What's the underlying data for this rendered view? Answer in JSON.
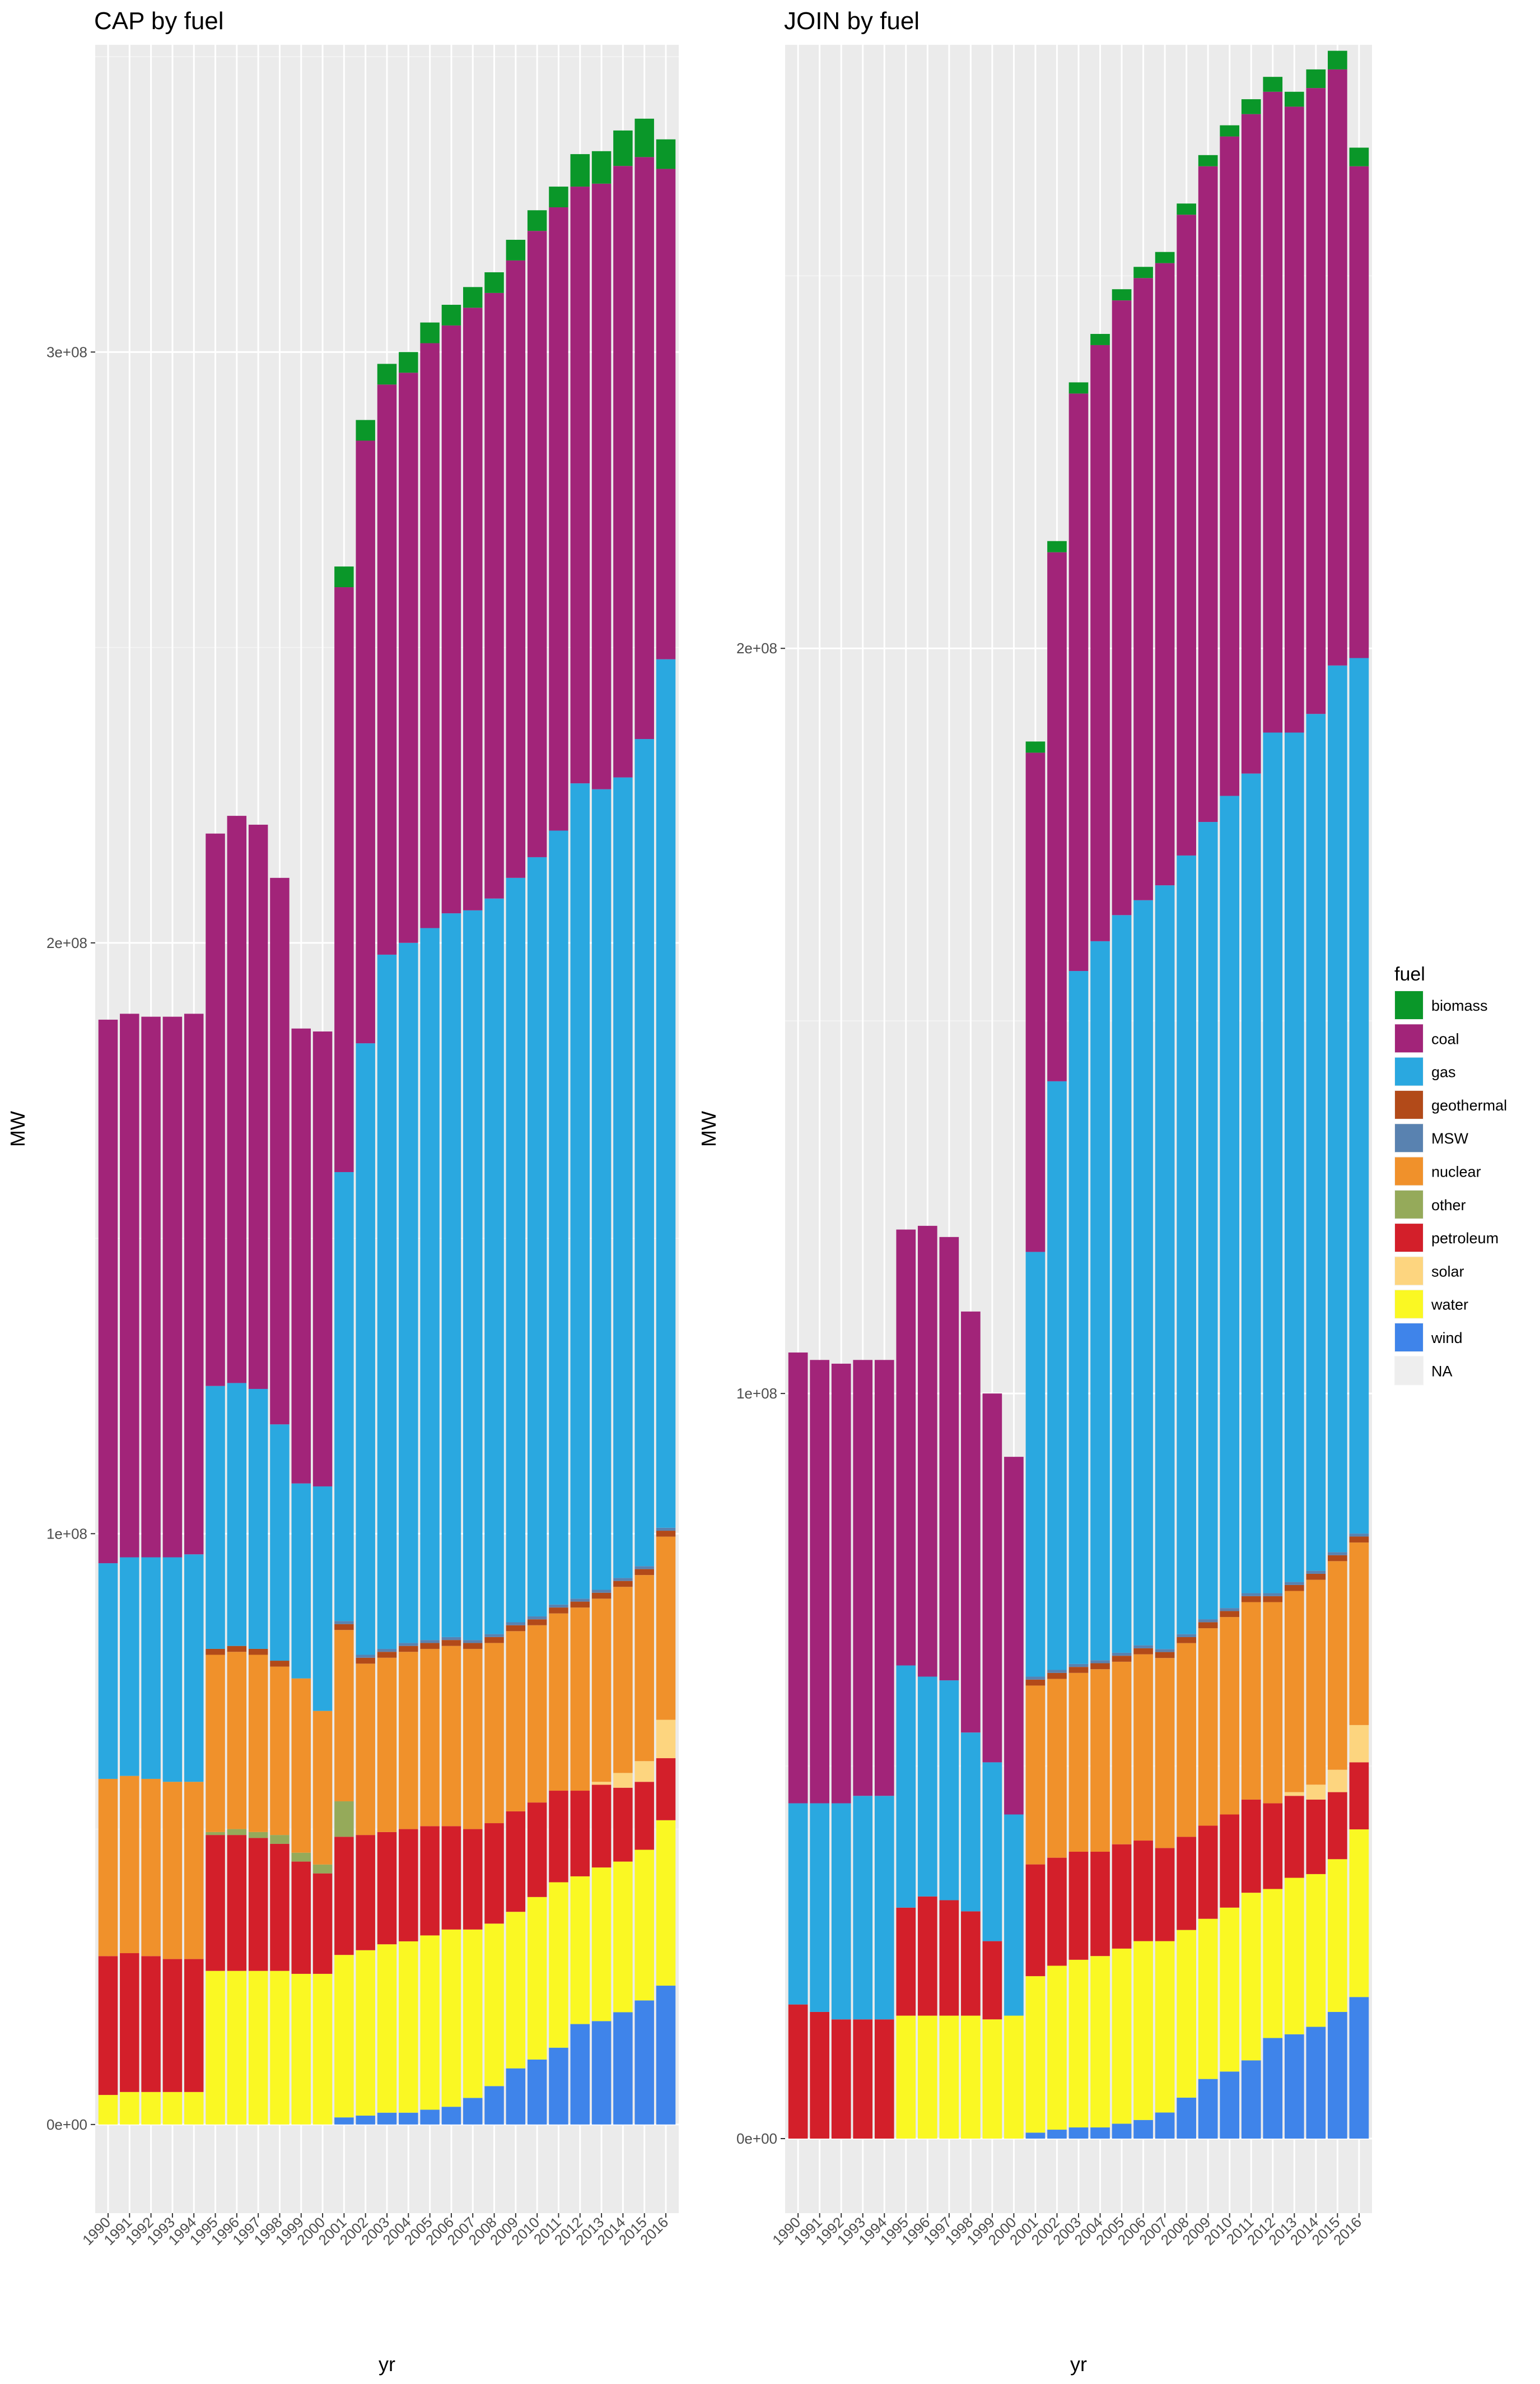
{
  "chart_data": [
    {
      "type": "bar",
      "stacked": true,
      "title": "CAP by fuel",
      "xlabel": "yr",
      "ylabel": "MW",
      "ylim": [
        -15000000,
        352000000
      ],
      "yticks": [
        0,
        100000000,
        200000000,
        300000000
      ],
      "ytick_labels": [
        "0e+00",
        "1e+08",
        "2e+08",
        "3e+08"
      ],
      "categories": [
        "1990",
        "1991",
        "1992",
        "1993",
        "1994",
        "1995",
        "1996",
        "1997",
        "1998",
        "1999",
        "2000",
        "2001",
        "2002",
        "2003",
        "2004",
        "2005",
        "2006",
        "2007",
        "2008",
        "2009",
        "2010",
        "2011",
        "2012",
        "2013",
        "2014",
        "2015",
        "2016"
      ],
      "series": [
        {
          "name": "wind",
          "color": "#3F84EA",
          "values": [
            0,
            0,
            0,
            0,
            0,
            0,
            0,
            0,
            0,
            0,
            0,
            1200000,
            1500000,
            2000000,
            2000000,
            2500000,
            3000000,
            4500000,
            6500000,
            9500000,
            11000000,
            13000000,
            17000000,
            17500000,
            19000000,
            21000000,
            23500000
          ]
        },
        {
          "name": "water",
          "color": "#FAF823",
          "values": [
            5000000,
            5500000,
            5500000,
            5500000,
            5500000,
            26000000,
            26000000,
            26000000,
            26000000,
            25500000,
            25500000,
            27500000,
            28000000,
            28500000,
            29000000,
            29500000,
            30000000,
            28500000,
            27500000,
            26500000,
            27500000,
            28000000,
            25000000,
            26000000,
            25500000,
            25500000,
            28000000
          ]
        },
        {
          "name": "petroleum",
          "color": "#D31F2A",
          "values": [
            23500000,
            23500000,
            23000000,
            22500000,
            22500000,
            23000000,
            23000000,
            22500000,
            21500000,
            19000000,
            17000000,
            20000000,
            19500000,
            19000000,
            19000000,
            18500000,
            17500000,
            17000000,
            17000000,
            17000000,
            16000000,
            15500000,
            14500000,
            14000000,
            12500000,
            11500000,
            10500000
          ]
        },
        {
          "name": "solar",
          "color": "#FDD57F",
          "values": [
            0,
            0,
            0,
            0,
            0,
            0,
            0,
            0,
            0,
            0,
            0,
            0,
            0,
            0,
            0,
            0,
            0,
            0,
            0,
            0,
            0,
            0,
            0,
            500000,
            2500000,
            3500000,
            6500000
          ]
        },
        {
          "name": "other",
          "color": "#95AA5A",
          "values": [
            0,
            0,
            0,
            0,
            0,
            500000,
            1000000,
            1000000,
            1500000,
            1500000,
            1500000,
            6000000,
            0,
            0,
            0,
            0,
            0,
            0,
            0,
            0,
            0,
            0,
            0,
            0,
            0,
            0,
            0
          ]
        },
        {
          "name": "nuclear",
          "color": "#F0912B",
          "values": [
            30000000,
            30000000,
            30000000,
            30000000,
            30000000,
            30000000,
            30000000,
            30000000,
            28500000,
            29500000,
            26000000,
            29000000,
            29000000,
            29500000,
            30000000,
            30000000,
            30500000,
            30500000,
            30500000,
            30500000,
            30000000,
            30000000,
            31000000,
            31000000,
            31500000,
            31500000,
            31000000
          ]
        },
        {
          "name": "geothermal",
          "color": "#B24A19",
          "values": [
            0,
            0,
            0,
            0,
            0,
            1000000,
            1000000,
            1000000,
            1000000,
            0,
            0,
            1000000,
            1000000,
            1000000,
            1000000,
            1000000,
            1000000,
            1000000,
            1000000,
            1000000,
            1000000,
            1000000,
            1000000,
            1000000,
            1000000,
            1000000,
            1000000
          ]
        },
        {
          "name": "MSW",
          "color": "#5982B0",
          "values": [
            0,
            0,
            0,
            0,
            0,
            0,
            0,
            0,
            0,
            0,
            0,
            500000,
            500000,
            500000,
            500000,
            500000,
            500000,
            500000,
            500000,
            500000,
            500000,
            500000,
            500000,
            500000,
            500000,
            500000,
            500000
          ]
        },
        {
          "name": "gas",
          "color": "#2AA8E0",
          "values": [
            36500000,
            37000000,
            37500000,
            38000000,
            38500000,
            44500000,
            44500000,
            44000000,
            40000000,
            33000000,
            38000000,
            76000000,
            103500000,
            117500000,
            118500000,
            120500000,
            122500000,
            123500000,
            124500000,
            126000000,
            128500000,
            131000000,
            138000000,
            135500000,
            135500000,
            140000000,
            147000000
          ]
        },
        {
          "name": "coal",
          "color": "#A22479",
          "values": [
            92000000,
            92000000,
            91500000,
            91500000,
            91500000,
            93500000,
            96000000,
            95500000,
            92500000,
            77000000,
            77000000,
            99000000,
            102000000,
            96500000,
            96500000,
            99000000,
            99500000,
            102000000,
            102500000,
            104500000,
            106000000,
            105500000,
            101000000,
            102500000,
            103500000,
            98500000,
            83000000
          ]
        },
        {
          "name": "biomass",
          "color": "#0A9729",
          "values": [
            0,
            0,
            0,
            0,
            0,
            0,
            0,
            0,
            0,
            0,
            0,
            3500000,
            3500000,
            3500000,
            3500000,
            3500000,
            3500000,
            3500000,
            3500000,
            3500000,
            3500000,
            3500000,
            5500000,
            5500000,
            6000000,
            6500000,
            5000000
          ]
        }
      ]
    },
    {
      "type": "bar",
      "stacked": true,
      "title": "JOIN by fuel",
      "xlabel": "yr",
      "ylabel": "MW",
      "ylim": [
        -10000000,
        281000000
      ],
      "yticks": [
        0,
        100000000,
        200000000
      ],
      "ytick_labels": [
        "0e+00",
        "1e+08",
        "2e+08"
      ],
      "categories": [
        "1990",
        "1991",
        "1992",
        "1993",
        "1994",
        "1995",
        "1996",
        "1997",
        "1998",
        "1999",
        "2000",
        "2001",
        "2002",
        "2003",
        "2004",
        "2005",
        "2006",
        "2007",
        "2008",
        "2009",
        "2010",
        "2011",
        "2012",
        "2013",
        "2014",
        "2015",
        "2016"
      ],
      "series": [
        {
          "name": "wind",
          "color": "#3F84EA",
          "values": [
            0,
            0,
            0,
            0,
            0,
            0,
            0,
            0,
            0,
            0,
            0,
            800000,
            1200000,
            1500000,
            1500000,
            2000000,
            2500000,
            3500000,
            5500000,
            8000000,
            9000000,
            10500000,
            13500000,
            14000000,
            15000000,
            17000000,
            19000000
          ]
        },
        {
          "name": "water",
          "color": "#FAF823",
          "values": [
            0,
            0,
            0,
            0,
            0,
            16500000,
            16500000,
            16500000,
            16500000,
            16000000,
            16500000,
            21000000,
            22000000,
            22500000,
            23000000,
            23500000,
            24000000,
            23000000,
            22500000,
            21500000,
            22000000,
            22500000,
            20000000,
            21000000,
            20500000,
            20500000,
            22500000
          ]
        },
        {
          "name": "petroleum",
          "color": "#D31F2A",
          "values": [
            18000000,
            17000000,
            16000000,
            16000000,
            16000000,
            14500000,
            16000000,
            15500000,
            14000000,
            10500000,
            0,
            15000000,
            14500000,
            14500000,
            14000000,
            14000000,
            13500000,
            12500000,
            12500000,
            12500000,
            12500000,
            12500000,
            11500000,
            11000000,
            10000000,
            9000000,
            9000000
          ]
        },
        {
          "name": "solar",
          "color": "#FDD57F",
          "values": [
            0,
            0,
            0,
            0,
            0,
            0,
            0,
            0,
            0,
            0,
            0,
            0,
            0,
            0,
            0,
            0,
            0,
            0,
            0,
            0,
            0,
            0,
            0,
            500000,
            2000000,
            3000000,
            5000000
          ]
        },
        {
          "name": "nuclear",
          "color": "#F0912B",
          "values": [
            0,
            0,
            0,
            0,
            0,
            0,
            0,
            0,
            0,
            0,
            0,
            24000000,
            24000000,
            24000000,
            24500000,
            24500000,
            25000000,
            25500000,
            26000000,
            26500000,
            26500000,
            26500000,
            27000000,
            27000000,
            27500000,
            28000000,
            24500000
          ]
        },
        {
          "name": "geothermal",
          "color": "#B24A19",
          "values": [
            0,
            0,
            0,
            0,
            0,
            0,
            0,
            0,
            0,
            0,
            0,
            800000,
            800000,
            800000,
            800000,
            800000,
            800000,
            800000,
            800000,
            800000,
            800000,
            800000,
            800000,
            800000,
            800000,
            800000,
            800000
          ]
        },
        {
          "name": "MSW",
          "color": "#5982B0",
          "values": [
            0,
            0,
            0,
            0,
            0,
            0,
            0,
            0,
            0,
            0,
            0,
            400000,
            400000,
            400000,
            400000,
            400000,
            400000,
            400000,
            400000,
            400000,
            400000,
            400000,
            400000,
            400000,
            400000,
            400000,
            400000
          ]
        },
        {
          "name": "gas",
          "color": "#2AA8E0",
          "values": [
            27000000,
            28000000,
            29000000,
            30000000,
            30000000,
            32500000,
            29500000,
            29500000,
            24000000,
            24000000,
            27000000,
            57000000,
            79000000,
            93000000,
            96500000,
            99000000,
            100000000,
            102500000,
            104500000,
            107000000,
            109000000,
            110000000,
            115500000,
            114000000,
            115000000,
            119000000,
            117500000
          ]
        },
        {
          "name": "coal",
          "color": "#A22479",
          "values": [
            60500000,
            59500000,
            59000000,
            58500000,
            58500000,
            58500000,
            60500000,
            59500000,
            56500000,
            49500000,
            48000000,
            67000000,
            71000000,
            77500000,
            80000000,
            82500000,
            83500000,
            83500000,
            86000000,
            88000000,
            88500000,
            88500000,
            86000000,
            84000000,
            84000000,
            80000000,
            66000000
          ]
        },
        {
          "name": "biomass",
          "color": "#0A9729",
          "values": [
            0,
            0,
            0,
            0,
            0,
            0,
            0,
            0,
            0,
            0,
            0,
            1500000,
            1500000,
            1500000,
            1500000,
            1500000,
            1500000,
            1500000,
            1500000,
            1500000,
            1500000,
            2000000,
            2000000,
            2000000,
            2500000,
            2500000,
            2500000
          ]
        }
      ]
    }
  ],
  "legend": {
    "title": "fuel",
    "items": [
      {
        "label": "biomass",
        "color": "#0A9729"
      },
      {
        "label": "coal",
        "color": "#A22479"
      },
      {
        "label": "gas",
        "color": "#2AA8E0"
      },
      {
        "label": "geothermal",
        "color": "#B24A19"
      },
      {
        "label": "MSW",
        "color": "#5982B0"
      },
      {
        "label": "nuclear",
        "color": "#F0912B"
      },
      {
        "label": "other",
        "color": "#95AA5A"
      },
      {
        "label": "petroleum",
        "color": "#D31F2A"
      },
      {
        "label": "solar",
        "color": "#FDD57F"
      },
      {
        "label": "water",
        "color": "#FAF823"
      },
      {
        "label": "wind",
        "color": "#3F84EA"
      },
      {
        "label": "NA",
        "color": "#EEEEEE"
      }
    ]
  }
}
